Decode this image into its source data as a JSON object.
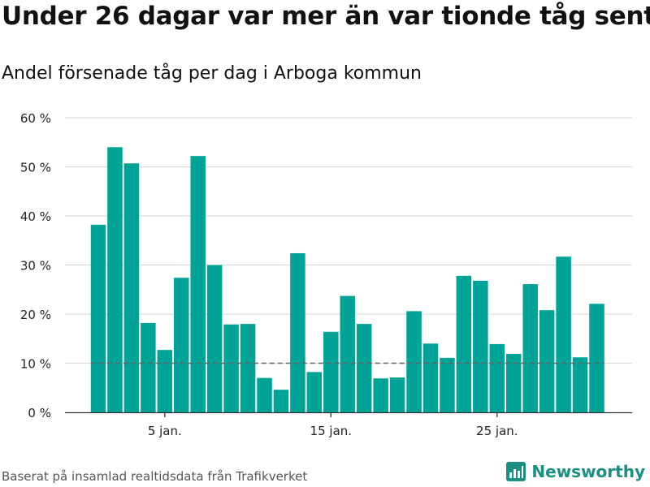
{
  "title": "Under 26 dagar var mer än var tionde tåg sent",
  "subtitle": "Andel försenade tåg per dag i Arboga kommun",
  "source": "Baserat på insamlad realtidsdata från Trafikverket",
  "brand": {
    "name": "Newsworthy",
    "icon": "newsworthy-logo-icon"
  },
  "colors": {
    "bar": "#00a396",
    "reference": "#666666",
    "grid": "#dddddd",
    "brand": "#1a8f83"
  },
  "chart_data": {
    "type": "bar",
    "x_dates": [
      "1 jan.",
      "2 jan.",
      "3 jan.",
      "4 jan.",
      "5 jan.",
      "6 jan.",
      "7 jan.",
      "8 jan.",
      "9 jan.",
      "10 jan.",
      "11 jan.",
      "12 jan.",
      "13 jan.",
      "14 jan.",
      "15 jan.",
      "16 jan.",
      "17 jan.",
      "18 jan.",
      "19 jan.",
      "20 jan.",
      "21 jan.",
      "22 jan.",
      "23 jan.",
      "24 jan.",
      "25 jan.",
      "26 jan.",
      "27 jan.",
      "28 jan.",
      "29 jan.",
      "30 jan.",
      "31 jan."
    ],
    "values": [
      38.2,
      54.0,
      50.7,
      18.2,
      12.7,
      27.4,
      52.2,
      30.0,
      17.9,
      18.0,
      7.0,
      4.6,
      32.4,
      8.2,
      16.4,
      23.7,
      18.0,
      6.9,
      7.1,
      20.6,
      14.0,
      11.1,
      27.8,
      26.8,
      13.9,
      11.9,
      26.1,
      20.8,
      31.7,
      11.2,
      22.1
    ],
    "reference_line": 10,
    "x_ticks": [
      {
        "day_index": 4,
        "label": "5 jan."
      },
      {
        "day_index": 14,
        "label": "15 jan."
      },
      {
        "day_index": 24,
        "label": "25 jan."
      }
    ],
    "y_ticks": [
      {
        "value": 0,
        "label": "0 %"
      },
      {
        "value": 10,
        "label": "10 %"
      },
      {
        "value": 20,
        "label": "20 %"
      },
      {
        "value": 30,
        "label": "30 %"
      },
      {
        "value": 40,
        "label": "40 %"
      },
      {
        "value": 50,
        "label": "50 %"
      },
      {
        "value": 60,
        "label": "60 %"
      }
    ],
    "ylim": [
      0,
      60
    ],
    "grid": true
  }
}
